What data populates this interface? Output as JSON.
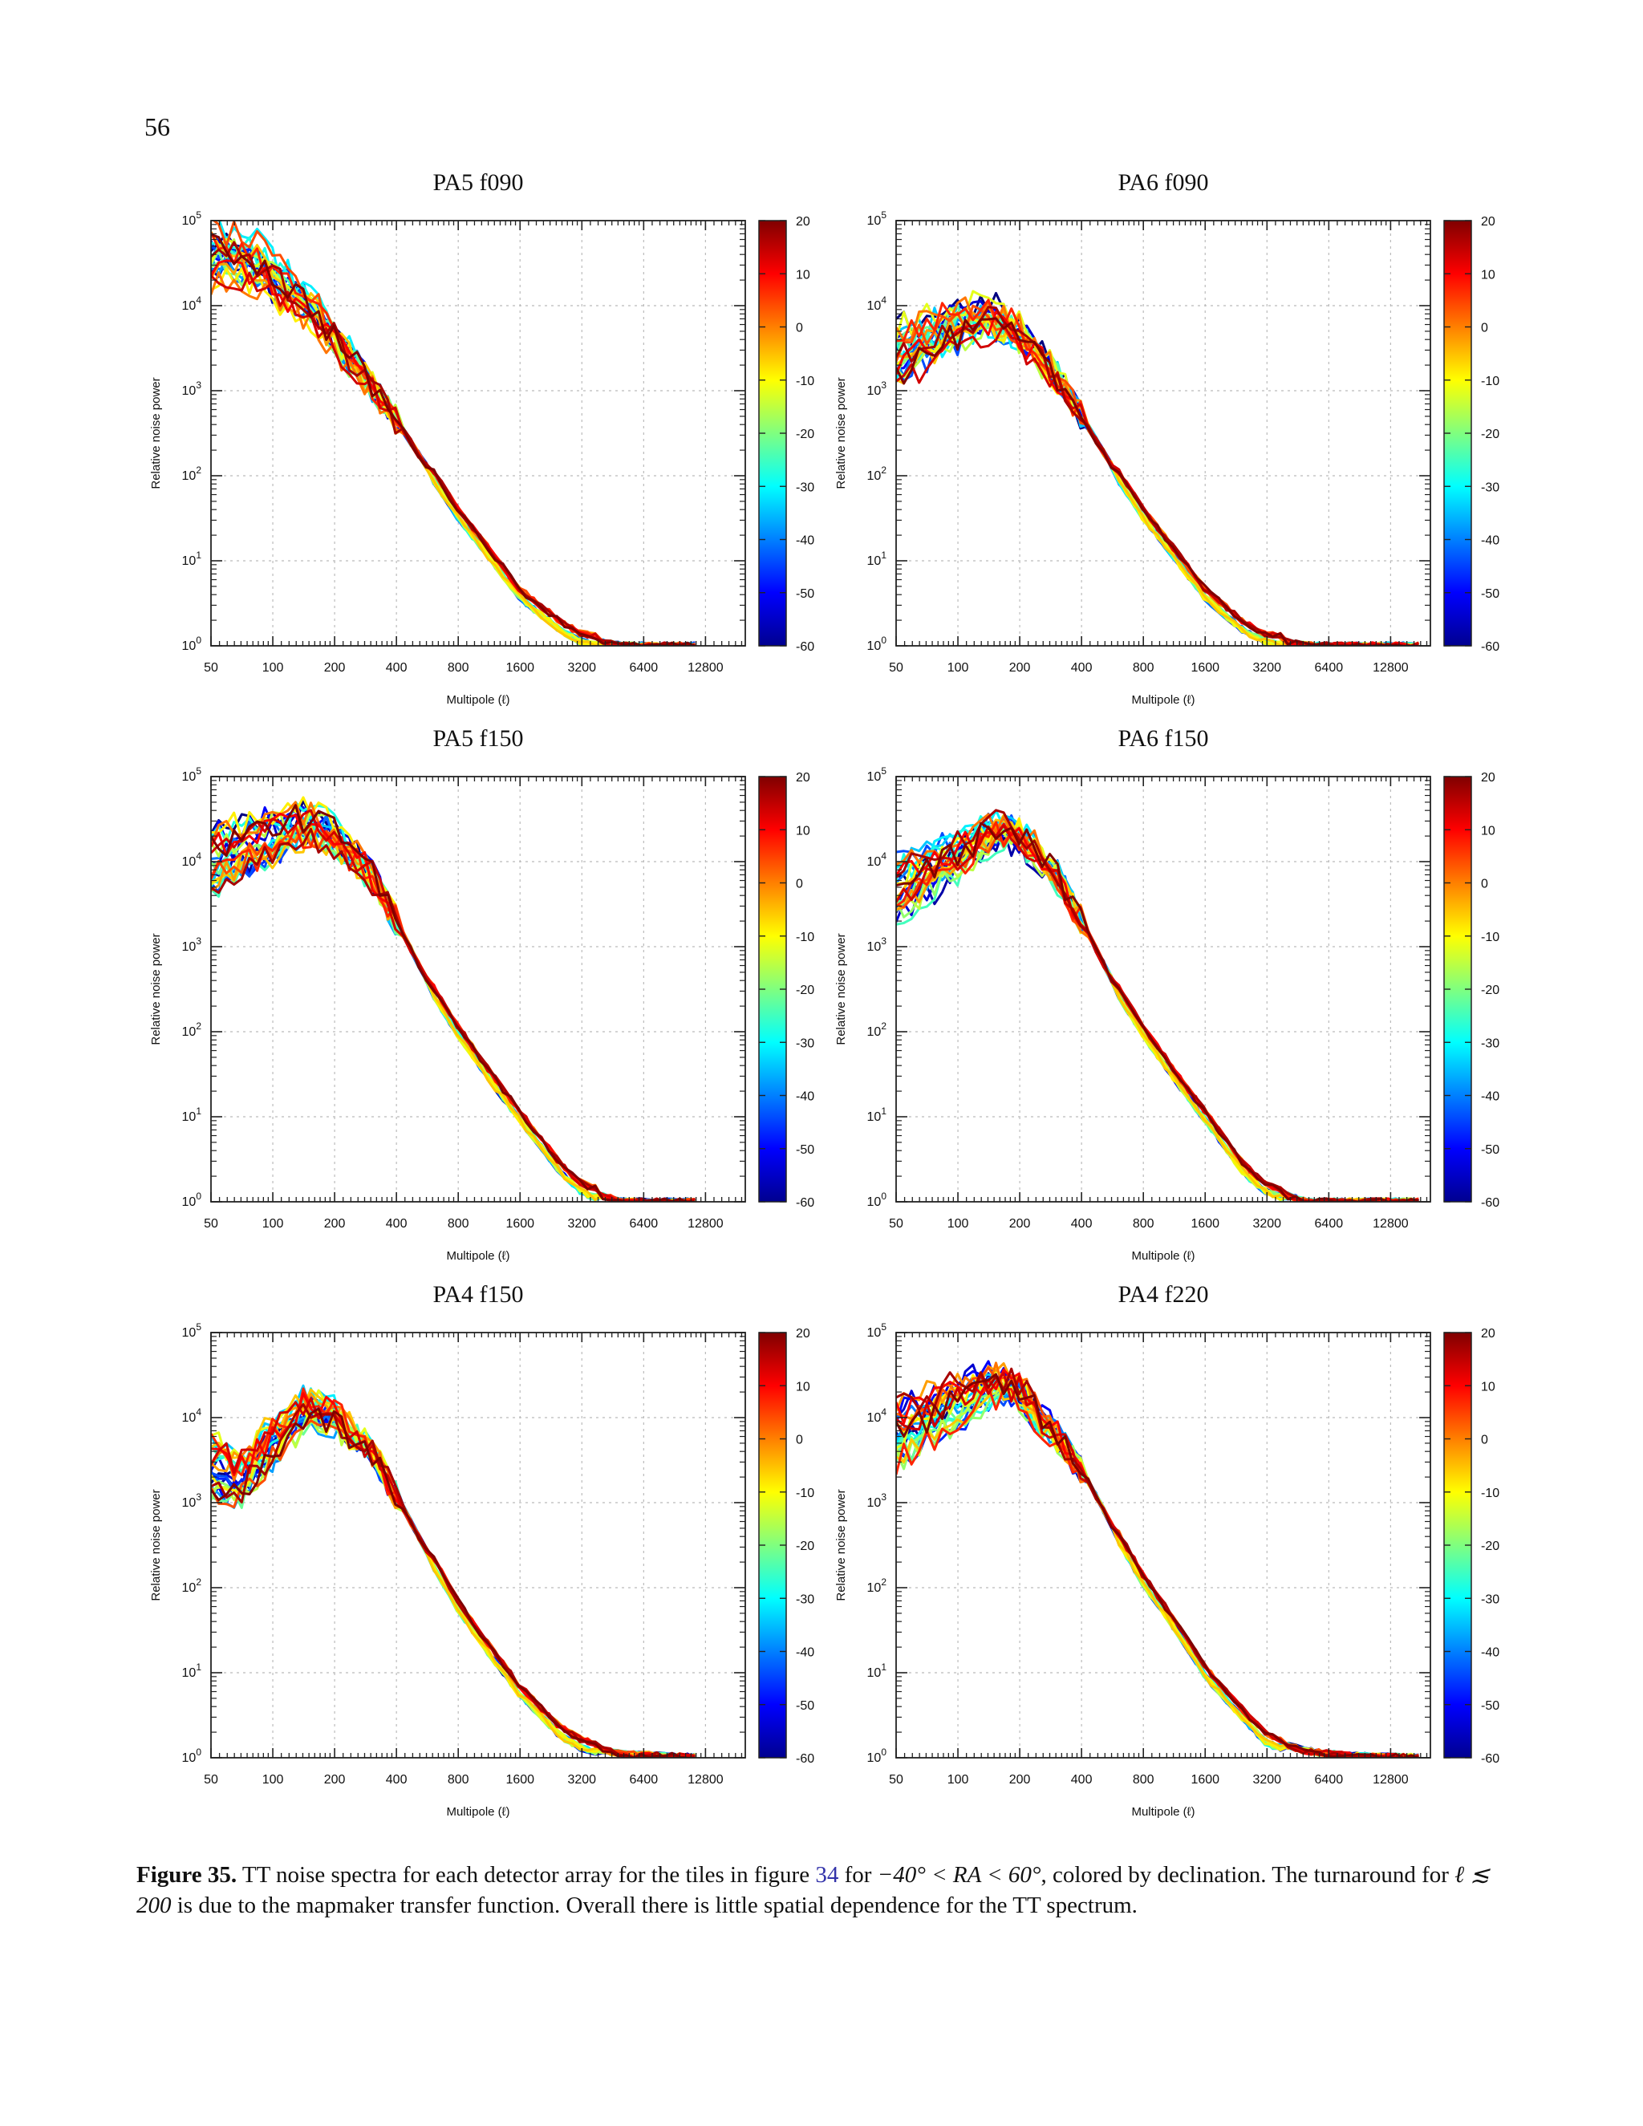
{
  "page_number": "56",
  "colorbar": {
    "ticks": [
      "20",
      "10",
      "0",
      "-10",
      "-20",
      "-30",
      "-40",
      "-50",
      "-60"
    ],
    "range": [
      -60,
      20
    ]
  },
  "caption": {
    "label": "Figure 35.",
    "text_a": "TT noise spectra for each detector array for the tiles in figure",
    "figure_ref": "34",
    "text_b": "for",
    "math_ra": "−40° < RA < 60°",
    "text_c": ", colored by declination. The turnaround for",
    "math_ell": "ℓ ≲ 200",
    "text_d": "is due to the mapmaker transfer function. Overall there is little spatial dependence for the TT spectrum."
  },
  "chart_data": [
    {
      "type": "line",
      "title": "PA5 f090",
      "xlabel": "Multipole (ℓ)",
      "ylabel": "Relative noise power",
      "xscale": "log2",
      "yscale": "log10",
      "xticks": [
        50,
        100,
        200,
        400,
        800,
        1600,
        3200,
        6400,
        12800
      ],
      "yticks": [
        "10^0",
        "10^1",
        "10^2",
        "10^3",
        "10^4",
        "10^5"
      ],
      "xlim": [
        50,
        20000
      ],
      "ylim": [
        1,
        100000
      ],
      "color_by": "declination",
      "profile": [
        [
          50,
          40000
        ],
        [
          80,
          33000
        ],
        [
          100,
          20000
        ],
        [
          150,
          10000
        ],
        [
          200,
          4000
        ],
        [
          300,
          1200
        ],
        [
          400,
          450
        ],
        [
          600,
          100
        ],
        [
          800,
          35
        ],
        [
          1200,
          10
        ],
        [
          1600,
          4
        ],
        [
          2500,
          1.7
        ],
        [
          3200,
          1.2
        ],
        [
          5000,
          1
        ],
        [
          12800,
          1
        ]
      ]
    },
    {
      "type": "line",
      "title": "PA6 f090",
      "xlabel": "Multipole (ℓ)",
      "ylabel": "Relative noise power",
      "xscale": "log2",
      "yscale": "log10",
      "xticks": [
        50,
        100,
        200,
        400,
        800,
        1600,
        3200,
        6400,
        12800
      ],
      "yticks": [
        "10^0",
        "10^1",
        "10^2",
        "10^3",
        "10^4",
        "10^5"
      ],
      "xlim": [
        50,
        20000
      ],
      "ylim": [
        1,
        100000
      ],
      "color_by": "declination",
      "profile": [
        [
          50,
          2500
        ],
        [
          70,
          4000
        ],
        [
          100,
          6000
        ],
        [
          150,
          7000
        ],
        [
          200,
          4500
        ],
        [
          300,
          1500
        ],
        [
          400,
          500
        ],
        [
          600,
          100
        ],
        [
          800,
          35
        ],
        [
          1200,
          10
        ],
        [
          1600,
          4
        ],
        [
          2500,
          1.6
        ],
        [
          3200,
          1.2
        ],
        [
          5000,
          1
        ],
        [
          20000,
          1
        ]
      ]
    },
    {
      "type": "line",
      "title": "PA5 f150",
      "xlabel": "Multipole (ℓ)",
      "ylabel": "Relative noise power",
      "xscale": "log2",
      "yscale": "log10",
      "xticks": [
        50,
        100,
        200,
        400,
        800,
        1600,
        3200,
        6400,
        12800
      ],
      "yticks": [
        "10^0",
        "10^1",
        "10^2",
        "10^3",
        "10^4",
        "10^5"
      ],
      "xlim": [
        50,
        20000
      ],
      "ylim": [
        1,
        100000
      ],
      "color_by": "declination",
      "profile": [
        [
          50,
          10000
        ],
        [
          100,
          20000
        ],
        [
          150,
          28000
        ],
        [
          200,
          20000
        ],
        [
          300,
          7000
        ],
        [
          400,
          2000
        ],
        [
          600,
          300
        ],
        [
          800,
          100
        ],
        [
          1200,
          25
        ],
        [
          1600,
          10
        ],
        [
          2500,
          2.5
        ],
        [
          3200,
          1.4
        ],
        [
          5000,
          1
        ],
        [
          12800,
          1
        ]
      ]
    },
    {
      "type": "line",
      "title": "PA6 f150",
      "xlabel": "Multipole (ℓ)",
      "ylabel": "Relative noise power",
      "xscale": "log2",
      "yscale": "log10",
      "xticks": [
        50,
        100,
        200,
        400,
        800,
        1600,
        3200,
        6400,
        12800
      ],
      "yticks": [
        "10^0",
        "10^1",
        "10^2",
        "10^3",
        "10^4",
        "10^5"
      ],
      "xlim": [
        50,
        20000
      ],
      "ylim": [
        1,
        100000
      ],
      "color_by": "declination",
      "profile": [
        [
          50,
          5000
        ],
        [
          100,
          12000
        ],
        [
          150,
          25000
        ],
        [
          200,
          22000
        ],
        [
          300,
          7000
        ],
        [
          400,
          2000
        ],
        [
          600,
          300
        ],
        [
          800,
          100
        ],
        [
          1200,
          25
        ],
        [
          1600,
          10
        ],
        [
          2500,
          2.3
        ],
        [
          3200,
          1.4
        ],
        [
          5000,
          1
        ],
        [
          20000,
          1
        ]
      ]
    },
    {
      "type": "line",
      "title": "PA4 f150",
      "xlabel": "Multipole (ℓ)",
      "ylabel": "Relative noise power",
      "xscale": "log2",
      "yscale": "log10",
      "xticks": [
        50,
        100,
        200,
        400,
        800,
        1600,
        3200,
        6400,
        12800
      ],
      "yticks": [
        "10^0",
        "10^1",
        "10^2",
        "10^3",
        "10^4",
        "10^5"
      ],
      "xlim": [
        50,
        20000
      ],
      "ylim": [
        1,
        100000
      ],
      "color_by": "declination",
      "profile": [
        [
          50,
          2500
        ],
        [
          70,
          1800
        ],
        [
          100,
          5000
        ],
        [
          150,
          13000
        ],
        [
          200,
          10000
        ],
        [
          300,
          4000
        ],
        [
          400,
          1200
        ],
        [
          600,
          200
        ],
        [
          800,
          60
        ],
        [
          1200,
          15
        ],
        [
          1600,
          6
        ],
        [
          2500,
          2
        ],
        [
          3200,
          1.4
        ],
        [
          5000,
          1.1
        ],
        [
          8000,
          1.05
        ],
        [
          12800,
          1
        ]
      ]
    },
    {
      "type": "line",
      "title": "PA4 f220",
      "xlabel": "Multipole (ℓ)",
      "ylabel": "Relative noise power",
      "xscale": "log2",
      "yscale": "log10",
      "xticks": [
        50,
        100,
        200,
        400,
        800,
        1600,
        3200,
        6400,
        12800
      ],
      "yticks": [
        "10^0",
        "10^1",
        "10^2",
        "10^3",
        "10^4",
        "10^5"
      ],
      "xlim": [
        50,
        20000
      ],
      "ylim": [
        1,
        100000
      ],
      "color_by": "declination",
      "profile": [
        [
          50,
          6000
        ],
        [
          100,
          15000
        ],
        [
          150,
          25000
        ],
        [
          200,
          20000
        ],
        [
          300,
          6000
        ],
        [
          400,
          2500
        ],
        [
          600,
          400
        ],
        [
          800,
          120
        ],
        [
          1200,
          30
        ],
        [
          1600,
          10
        ],
        [
          2500,
          3
        ],
        [
          3200,
          1.6
        ],
        [
          5000,
          1.2
        ],
        [
          8000,
          1.05
        ],
        [
          20000,
          1
        ]
      ]
    }
  ]
}
